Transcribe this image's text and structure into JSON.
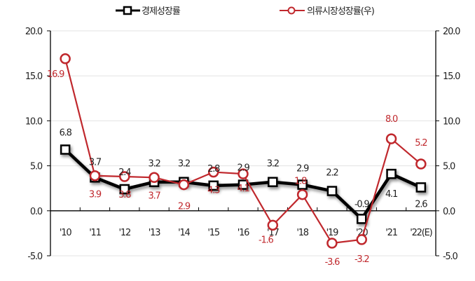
{
  "chart_data": {
    "type": "line",
    "title": "",
    "categories": [
      "'10",
      "'11",
      "'12",
      "'13",
      "'14",
      "'15",
      "'16",
      "'17",
      "'18",
      "'19",
      "'20",
      "'21",
      "'22(E)"
    ],
    "series": [
      {
        "name": "경제성장률",
        "axis": "left",
        "color": "#000000",
        "marker": "square",
        "values": [
          6.8,
          3.7,
          2.4,
          3.2,
          3.2,
          2.8,
          2.9,
          3.2,
          2.9,
          2.2,
          -0.9,
          4.1,
          2.6
        ],
        "labels": [
          "6.8",
          "3.7",
          "2.4",
          "3.2",
          "3.2",
          "2.8",
          "2.9",
          "3.2",
          "2.9",
          "2.2",
          "-0.9",
          "4.1",
          "2.6"
        ]
      },
      {
        "name": "의류시장성장률(우)",
        "axis": "right",
        "color": "#c0282d",
        "marker": "circle",
        "values": [
          16.9,
          3.9,
          3.8,
          3.7,
          2.9,
          4.3,
          4.1,
          -1.6,
          1.8,
          -3.6,
          -3.2,
          8.0,
          5.2
        ],
        "labels": [
          "16.9",
          "3.9",
          "3.8",
          "3.7",
          "2.9",
          "4.3",
          "4.1",
          "-1.6",
          "1.8",
          "-3.6",
          "-3.2",
          "8.0",
          "5.2"
        ]
      }
    ],
    "xlabel": "",
    "ylabel": "",
    "ylim": [
      -5,
      20
    ],
    "y2lim": [
      -5,
      20
    ],
    "yticks": [
      "20.0",
      "15.0",
      "10.0",
      "5.0",
      "0.0",
      "-5.0"
    ],
    "grid": true,
    "legend_position": "top"
  },
  "legend": {
    "series1": "경제성장률",
    "series2": "의류시장성장률(우)"
  }
}
